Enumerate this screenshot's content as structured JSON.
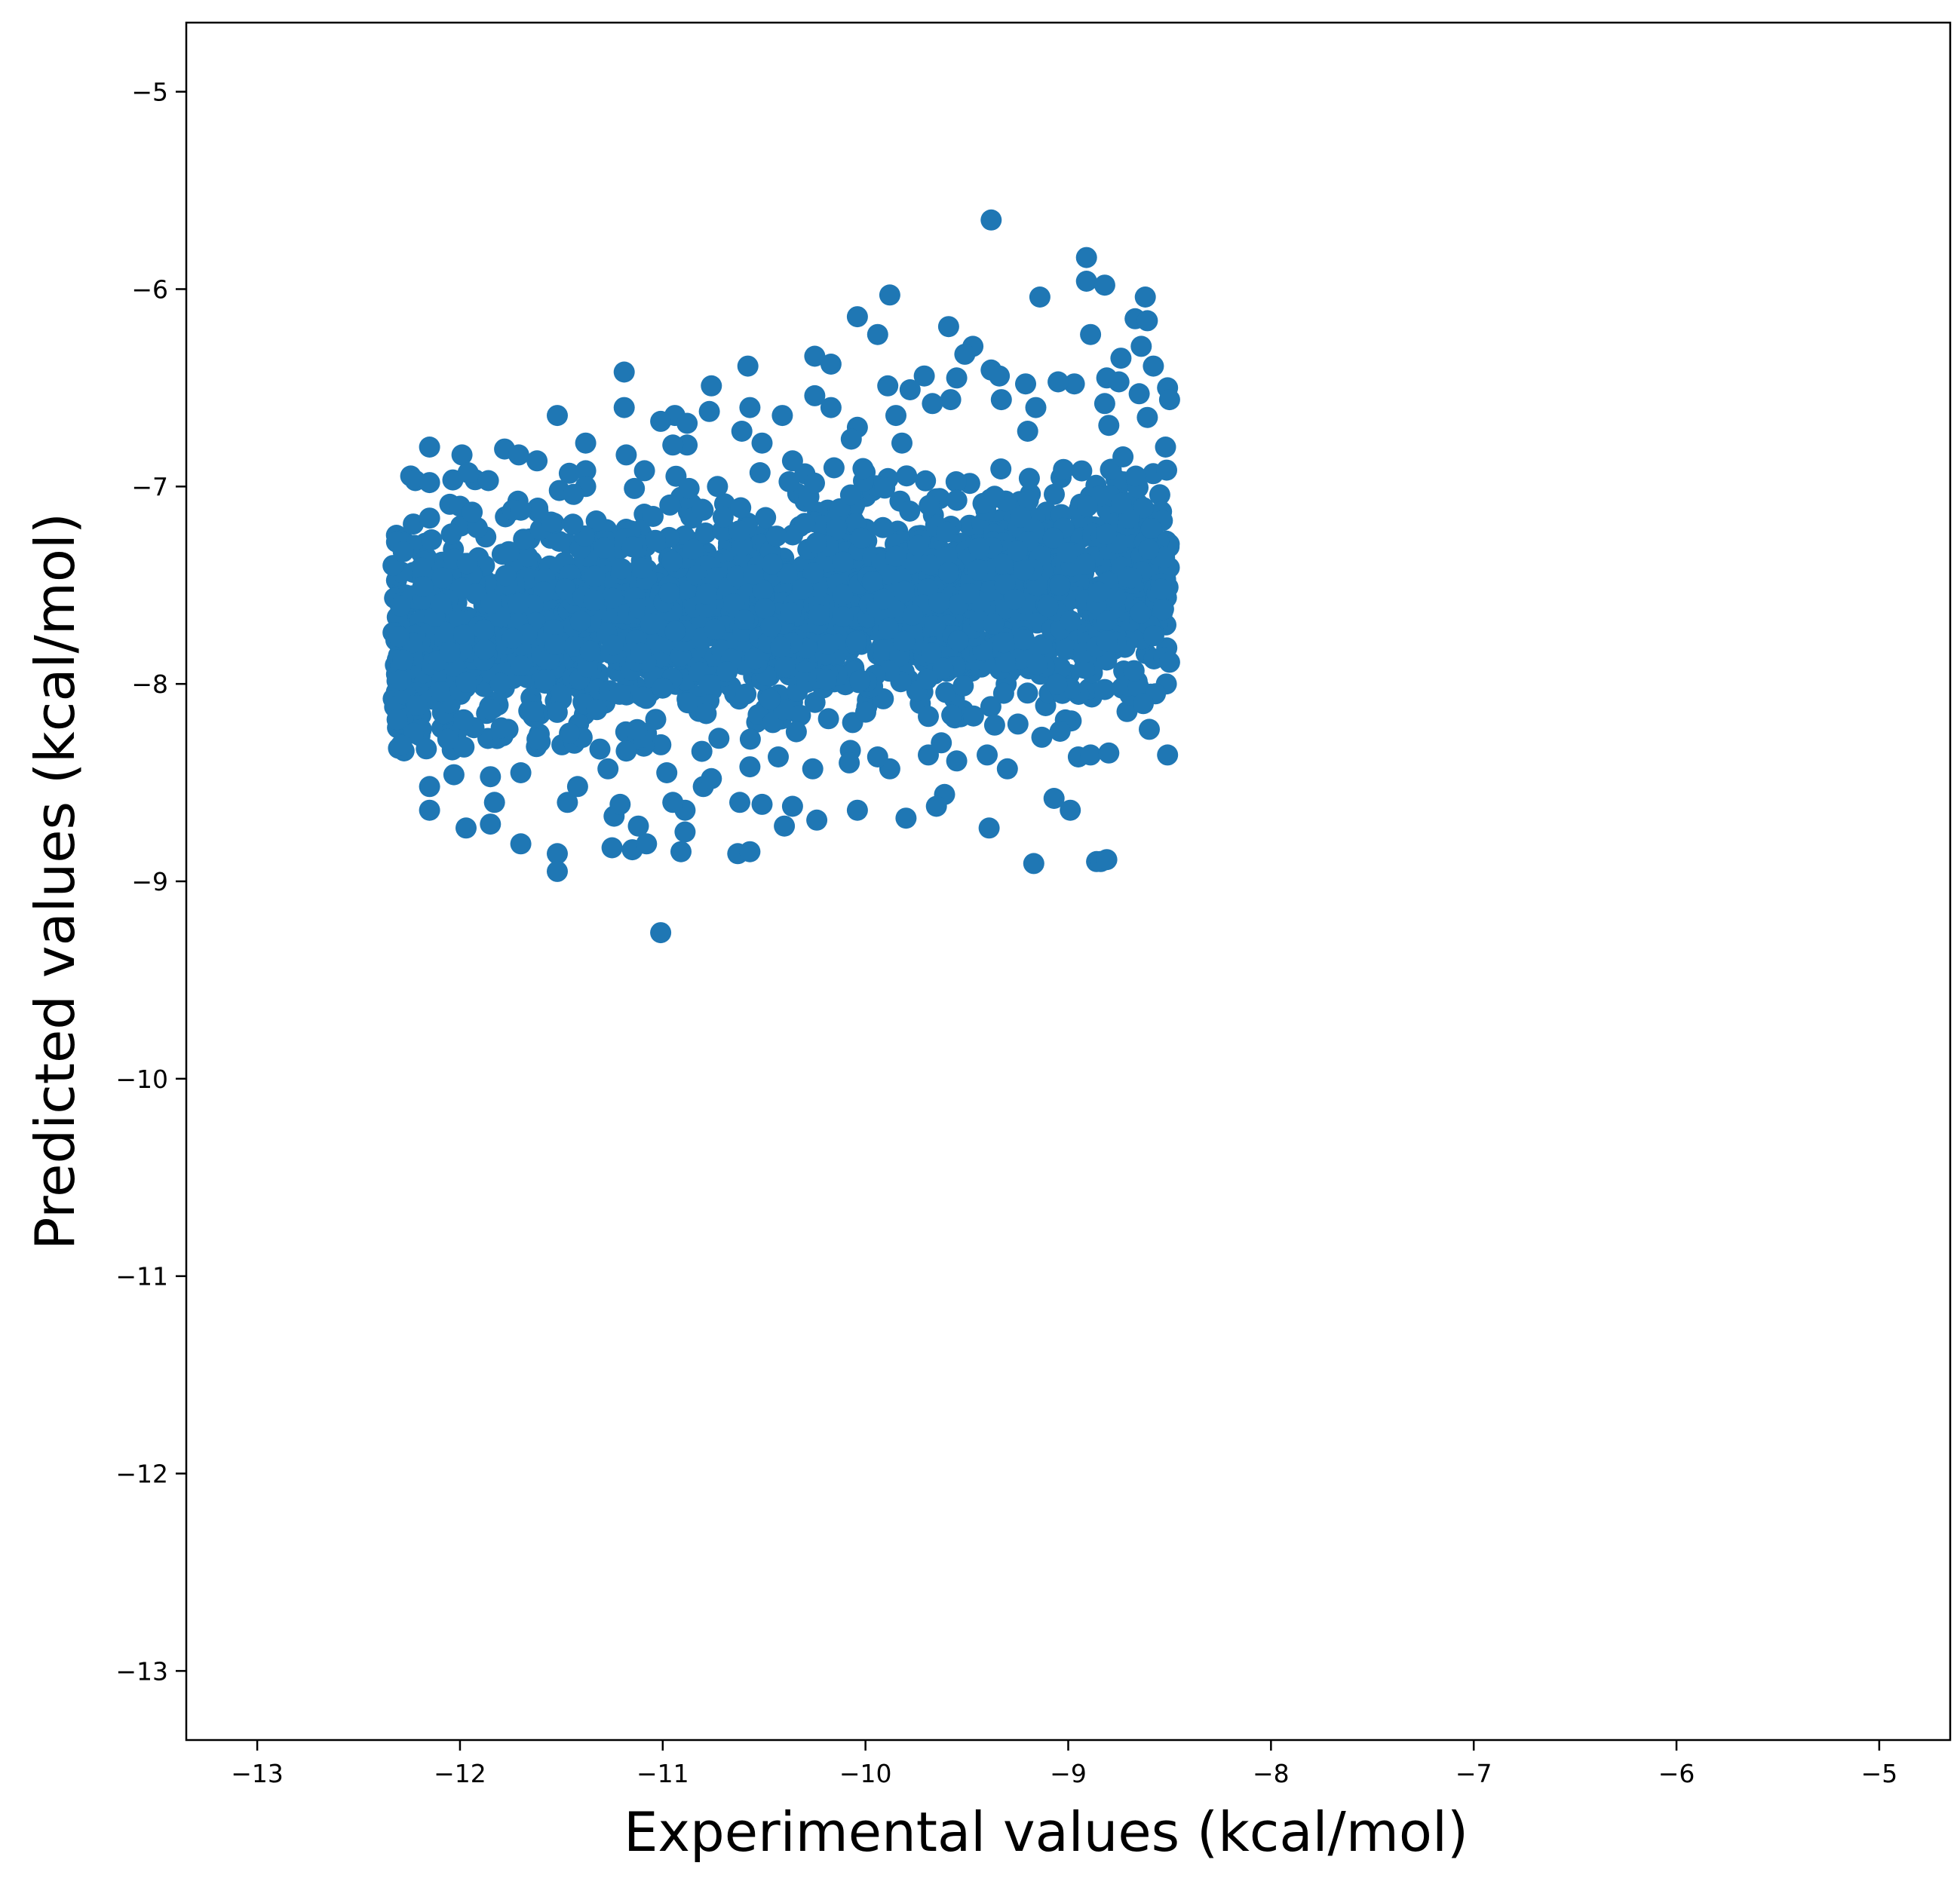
{
  "chart_data": {
    "type": "scatter",
    "title": "",
    "xlabel": "Experimental values (kcal/mol)",
    "ylabel": "Predicted values (kcal/mol)",
    "xlim": [
      -13.35,
      -4.65
    ],
    "ylim": [
      -13.35,
      -4.65
    ],
    "xticks": [
      -13,
      -12,
      -11,
      -10,
      -9,
      -8,
      -7,
      -6,
      -5
    ],
    "yticks": [
      -13,
      -12,
      -11,
      -10,
      -9,
      -8,
      -7,
      -6,
      -5
    ],
    "xtick_labels": [
      "−13",
      "−12",
      "−11",
      "−10",
      "−9",
      "−8",
      "−7",
      "−6",
      "−5"
    ],
    "ytick_labels": [
      "−13",
      "−12",
      "−11",
      "−10",
      "−9",
      "−8",
      "−7",
      "−6",
      "−5"
    ],
    "grid": false,
    "marker_color": "#1f77b4",
    "series": [
      {
        "points": [
          [
            -9.38,
            -5.65
          ],
          [
            -8.91,
            -5.84
          ],
          [
            -8.91,
            -5.96
          ],
          [
            -8.82,
            -5.98
          ],
          [
            -9.88,
            -6.03
          ],
          [
            -9.14,
            -6.04
          ],
          [
            -8.62,
            -6.04
          ],
          [
            -10.04,
            -6.14
          ],
          [
            -8.67,
            -6.15
          ],
          [
            -8.61,
            -6.16
          ],
          [
            -9.59,
            -6.19
          ],
          [
            -9.94,
            -6.23
          ],
          [
            -8.89,
            -6.23
          ],
          [
            -8.64,
            -6.29
          ],
          [
            -9.47,
            -6.29
          ],
          [
            -10.25,
            -6.34
          ],
          [
            -8.74,
            -6.35
          ],
          [
            -10.17,
            -6.38
          ],
          [
            -9.51,
            -6.33
          ],
          [
            -8.58,
            -6.39
          ],
          [
            -10.58,
            -6.39
          ],
          [
            -11.19,
            -6.42
          ],
          [
            -9.38,
            -6.41
          ],
          [
            -8.97,
            -6.48
          ],
          [
            -9.71,
            -6.44
          ],
          [
            -8.81,
            -6.45
          ],
          [
            -9.89,
            -6.49
          ],
          [
            -9.34,
            -6.44
          ],
          [
            -8.51,
            -6.5
          ],
          [
            -10.76,
            -6.49
          ],
          [
            -9.21,
            -6.48
          ],
          [
            -8.75,
            -6.47
          ],
          [
            -9.78,
            -6.51
          ],
          [
            -9.05,
            -6.47
          ],
          [
            -9.55,
            -6.45
          ],
          [
            -10.25,
            -6.54
          ],
          [
            -9.58,
            -6.56
          ],
          [
            -8.65,
            -6.53
          ],
          [
            -8.5,
            -6.56
          ],
          [
            -9.33,
            -6.56
          ],
          [
            -10.57,
            -6.6
          ],
          [
            -11.19,
            -6.6
          ],
          [
            -10.17,
            -6.6
          ],
          [
            -8.82,
            -6.58
          ],
          [
            -9.67,
            -6.58
          ],
          [
            -11.52,
            -6.64
          ],
          [
            -10.94,
            -6.64
          ],
          [
            -10.41,
            -6.64
          ],
          [
            -11.01,
            -6.67
          ],
          [
            -9.85,
            -6.64
          ],
          [
            -8.61,
            -6.65
          ],
          [
            -9.16,
            -6.6
          ],
          [
            -10.77,
            -6.62
          ],
          [
            -10.88,
            -6.68
          ],
          [
            -8.8,
            -6.69
          ],
          [
            -10.04,
            -6.7
          ],
          [
            -9.2,
            -6.72
          ],
          [
            -10.51,
            -6.78
          ],
          [
            -11.38,
            -6.78
          ],
          [
            -10.88,
            -6.79
          ],
          [
            -10.61,
            -6.72
          ],
          [
            -10.07,
            -6.76
          ],
          [
            -12.15,
            -6.8
          ],
          [
            -11.78,
            -6.81
          ],
          [
            -11.99,
            -6.84
          ],
          [
            -11.71,
            -6.84
          ],
          [
            -11.18,
            -6.84
          ],
          [
            -9.82,
            -6.78
          ],
          [
            -11.62,
            -6.87
          ],
          [
            -8.52,
            -6.8
          ],
          [
            -10.95,
            -6.79
          ],
          [
            -8.73,
            -6.85
          ],
          [
            -10.36,
            -6.87
          ],
          [
            -12.22,
            -6.97
          ],
          [
            -11.96,
            -6.93
          ],
          [
            -11.86,
            -6.97
          ],
          [
            -11.38,
            -6.92
          ],
          [
            -10.52,
            -6.93
          ],
          [
            -11.09,
            -6.92
          ],
          [
            -12.15,
            -6.98
          ],
          [
            -11.38,
            -7.0
          ],
          [
            -11.14,
            -7.01
          ],
          [
            -10.87,
            -7.01
          ],
          [
            -11.51,
            -7.02
          ],
          [
            -12.05,
            -7.09
          ],
          [
            -11.44,
            -7.04
          ],
          [
            -10.73,
            -7.0
          ],
          [
            -11.74,
            -7.12
          ],
          [
            -11.7,
            -7.12
          ],
          [
            -12.23,
            -7.19
          ],
          [
            -12.0,
            -7.1
          ],
          [
            -11.94,
            -7.13
          ],
          [
            -12.15,
            -7.16
          ],
          [
            -11.55,
            -7.18
          ],
          [
            -12.33,
            -7.4
          ],
          [
            -12.28,
            -7.33
          ],
          [
            -11.76,
            -7.33
          ],
          [
            -12.14,
            -7.27
          ],
          [
            -12.33,
            -7.74
          ],
          [
            -12.3,
            -7.76
          ],
          [
            -12.29,
            -7.98
          ],
          [
            -12.31,
            -8.18
          ],
          [
            -12.23,
            -8.25
          ],
          [
            -12.29,
            -8.31
          ],
          [
            -12.15,
            -8.52
          ],
          [
            -12.15,
            -8.64
          ],
          [
            -11.98,
            -8.32
          ],
          [
            -12.06,
            -8.26
          ],
          [
            -12.03,
            -8.46
          ],
          [
            -11.97,
            -8.73
          ],
          [
            -11.85,
            -8.71
          ],
          [
            -11.83,
            -8.6
          ],
          [
            -11.85,
            -8.47
          ],
          [
            -11.7,
            -8.45
          ],
          [
            -11.7,
            -8.81
          ],
          [
            -11.52,
            -8.86
          ],
          [
            -11.52,
            -8.95
          ],
          [
            -11.47,
            -8.6
          ],
          [
            -11.42,
            -8.52
          ],
          [
            -11.27,
            -8.43
          ],
          [
            -11.24,
            -8.67
          ],
          [
            -11.25,
            -8.83
          ],
          [
            -11.21,
            -8.61
          ],
          [
            -11.15,
            -8.84
          ],
          [
            -11.12,
            -8.72
          ],
          [
            -11.08,
            -8.81
          ],
          [
            -11.01,
            -9.26
          ],
          [
            -10.91,
            -8.85
          ],
          [
            -10.89,
            -8.75
          ],
          [
            -10.89,
            -8.64
          ],
          [
            -10.95,
            -8.6
          ],
          [
            -10.8,
            -8.52
          ],
          [
            -10.63,
            -8.86
          ],
          [
            -10.57,
            -8.85
          ],
          [
            -10.62,
            -8.6
          ],
          [
            -10.51,
            -8.61
          ],
          [
            -10.4,
            -8.72
          ],
          [
            -10.36,
            -8.62
          ],
          [
            -10.24,
            -8.69
          ],
          [
            -10.04,
            -8.64
          ],
          [
            -9.8,
            -8.68
          ],
          [
            -9.61,
            -8.56
          ],
          [
            -9.65,
            -8.62
          ],
          [
            -9.39,
            -8.73
          ],
          [
            -9.17,
            -8.91
          ],
          [
            -9.07,
            -8.58
          ],
          [
            -8.99,
            -8.64
          ],
          [
            -8.86,
            -8.9
          ],
          [
            -8.84,
            -8.9
          ],
          [
            -8.81,
            -8.89
          ],
          [
            -9.13,
            -8.27
          ],
          [
            -9.04,
            -8.24
          ],
          [
            -8.95,
            -8.37
          ],
          [
            -8.89,
            -8.36
          ],
          [
            -8.8,
            -8.35
          ],
          [
            -8.6,
            -8.23
          ],
          [
            -8.51,
            -8.36
          ],
          [
            -8.57,
            -8.05
          ],
          [
            -8.63,
            -8.1
          ],
          [
            -8.5,
            -7.89
          ],
          [
            -9.3,
            -8.43
          ],
          [
            -9.4,
            -8.36
          ],
          [
            -9.55,
            -8.39
          ],
          [
            -9.69,
            -8.36
          ],
          [
            -9.88,
            -8.43
          ],
          [
            -9.94,
            -8.37
          ],
          [
            -10.08,
            -8.4
          ],
          [
            -10.26,
            -8.43
          ],
          [
            -10.43,
            -8.37
          ],
          [
            -10.57,
            -8.42
          ],
          [
            -10.76,
            -8.48
          ],
          [
            -10.98,
            -8.45
          ],
          [
            -11.18,
            -8.34
          ],
          [
            -11.31,
            -8.33
          ],
          [
            -11.46,
            -8.25
          ],
          [
            -11.62,
            -8.28
          ],
          [
            -11.85,
            -8.13
          ],
          [
            -12.06,
            -8.28
          ],
          [
            -12.21,
            -8.11
          ],
          [
            -12.28,
            -7.88
          ]
        ]
      }
    ]
  }
}
